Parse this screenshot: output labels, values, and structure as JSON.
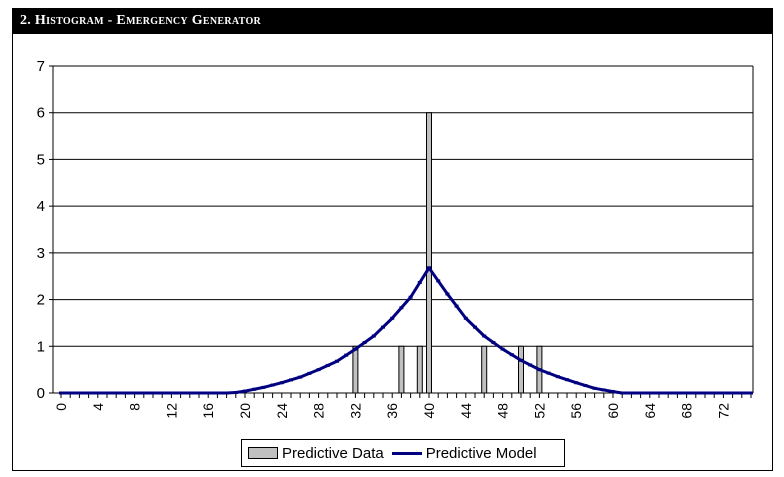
{
  "title": "2. Histogram - Emergency Generator",
  "colors": {
    "bar": "#c0c0c0",
    "line": "#000080",
    "grid": "#000000"
  },
  "chart_data": {
    "type": "bar",
    "title": "",
    "xlabel": "",
    "ylabel": "",
    "ylim": [
      0,
      7
    ],
    "xlim": [
      0,
      75
    ],
    "yticks": [
      "0",
      "1",
      "2",
      "3",
      "4",
      "5",
      "6",
      "7"
    ],
    "xticks": [
      "0",
      "4",
      "8",
      "12",
      "16",
      "20",
      "24",
      "28",
      "32",
      "36",
      "40",
      "44",
      "48",
      "52",
      "56",
      "60",
      "64",
      "68",
      "72"
    ],
    "legend_position": "bottom",
    "grid": true,
    "series": [
      {
        "name": "Predictive Data",
        "type": "bar",
        "x": [
          32,
          37,
          39,
          40,
          46,
          50,
          52
        ],
        "values": [
          1,
          1,
          1,
          6,
          1,
          1,
          1
        ]
      },
      {
        "name": "Predictive Model",
        "type": "line",
        "x": [
          0,
          18,
          19,
          20,
          22,
          24,
          26,
          28,
          30,
          32,
          34,
          36,
          38,
          40,
          42,
          44,
          46,
          48,
          50,
          52,
          54,
          56,
          58,
          60,
          61,
          75
        ],
        "values": [
          0,
          0,
          0.01,
          0.04,
          0.12,
          0.22,
          0.34,
          0.5,
          0.68,
          0.94,
          1.22,
          1.6,
          2.05,
          2.68,
          2.12,
          1.6,
          1.22,
          0.94,
          0.7,
          0.5,
          0.35,
          0.22,
          0.1,
          0.03,
          0,
          0
        ]
      }
    ]
  }
}
